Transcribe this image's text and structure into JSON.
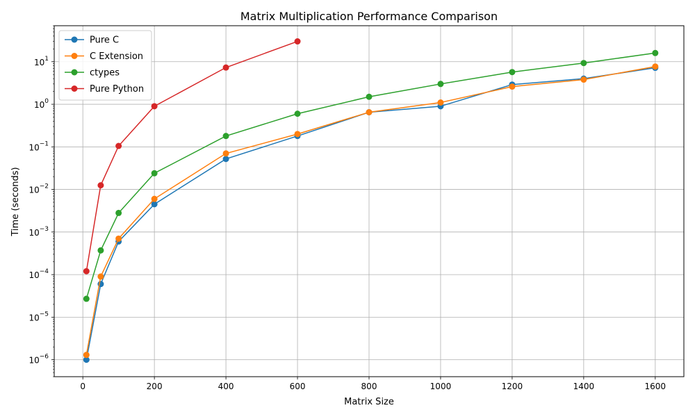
{
  "chart_data": {
    "type": "line",
    "title": "Matrix Multiplication Performance Comparison",
    "xlabel": "Matrix Size",
    "ylabel": "Time (seconds)",
    "xlim": [
      -80,
      1680
    ],
    "ylim": [
      4e-07,
      70
    ],
    "yscale": "log",
    "grid": true,
    "legend_position": "top-left",
    "x_ticks": [
      0,
      200,
      400,
      600,
      800,
      1000,
      1200,
      1400,
      1600
    ],
    "y_ticks": [
      {
        "value": 1e-06,
        "base": "10",
        "exp": "−6"
      },
      {
        "value": 1e-05,
        "base": "10",
        "exp": "−5"
      },
      {
        "value": 0.0001,
        "base": "10",
        "exp": "−4"
      },
      {
        "value": 0.001,
        "base": "10",
        "exp": "−3"
      },
      {
        "value": 0.01,
        "base": "10",
        "exp": "−2"
      },
      {
        "value": 0.1,
        "base": "10",
        "exp": "−1"
      },
      {
        "value": 1,
        "base": "10",
        "exp": "0"
      },
      {
        "value": 10,
        "base": "10",
        "exp": "1"
      }
    ],
    "series": [
      {
        "name": "Pure C",
        "color": "#1f77b4",
        "x": [
          10,
          50,
          100,
          200,
          400,
          600,
          800,
          1000,
          1200,
          1400,
          1600
        ],
        "y": [
          1e-06,
          6e-05,
          0.0006,
          0.0045,
          0.052,
          0.18,
          0.65,
          0.9,
          2.9,
          4.0,
          7.2
        ]
      },
      {
        "name": "C Extension",
        "color": "#ff7f0e",
        "x": [
          10,
          50,
          100,
          200,
          400,
          600,
          800,
          1000,
          1200,
          1400,
          1600
        ],
        "y": [
          1.3e-06,
          9e-05,
          0.0007,
          0.006,
          0.07,
          0.2,
          0.65,
          1.1,
          2.6,
          3.8,
          7.7
        ]
      },
      {
        "name": "ctypes",
        "color": "#2ca02c",
        "x": [
          10,
          50,
          100,
          200,
          400,
          600,
          800,
          1000,
          1200,
          1400,
          1600
        ],
        "y": [
          2.7e-05,
          0.00037,
          0.0028,
          0.024,
          0.18,
          0.6,
          1.5,
          3.0,
          5.7,
          9.3,
          16
        ]
      },
      {
        "name": "Pure Python",
        "color": "#d62728",
        "x": [
          10,
          50,
          100,
          200,
          400,
          600
        ],
        "y": [
          0.00012,
          0.0125,
          0.105,
          0.9,
          7.3,
          30
        ]
      }
    ]
  }
}
